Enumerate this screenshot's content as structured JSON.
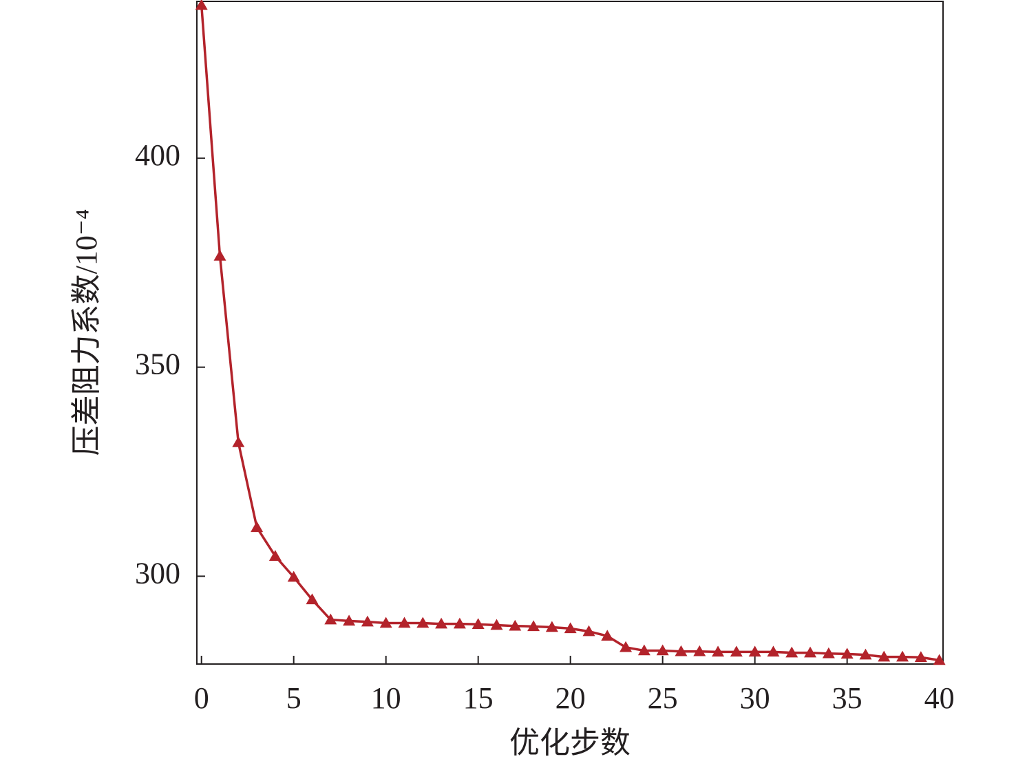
{
  "chart_data": {
    "type": "line",
    "x_label": "优化步数",
    "y_label": "压差阻力系数/10⁻⁴",
    "x": [
      0,
      1,
      2,
      3,
      4,
      5,
      6,
      7,
      8,
      9,
      10,
      11,
      12,
      13,
      14,
      15,
      16,
      17,
      18,
      19,
      20,
      21,
      22,
      23,
      24,
      25,
      26,
      27,
      28,
      29,
      30,
      31,
      32,
      33,
      34,
      35,
      36,
      37,
      38,
      39,
      40
    ],
    "series": [
      {
        "color": "#b3232b",
        "marker": "triangle",
        "values": [
          436.6,
          376.6,
          332,
          311.7,
          304.8,
          299.8,
          294.4,
          289.6,
          289.3,
          289.1,
          288.8,
          288.8,
          288.8,
          288.6,
          288.6,
          288.5,
          288.3,
          288.1,
          288.0,
          287.8,
          287.5,
          286.8,
          285.7,
          283.0,
          282.2,
          282.2,
          282.0,
          282.0,
          281.9,
          281.9,
          281.9,
          281.9,
          281.7,
          281.7,
          281.5,
          281.4,
          281.2,
          280.7,
          280.7,
          280.6,
          279.9
        ]
      }
    ],
    "xlim": [
      -0.25,
      40.2
    ],
    "xticks": [
      0,
      5,
      10,
      15,
      20,
      25,
      30,
      35,
      40
    ],
    "ylim": [
      279,
      437.5
    ],
    "yticks": [
      300,
      350,
      400
    ],
    "grid": false
  }
}
